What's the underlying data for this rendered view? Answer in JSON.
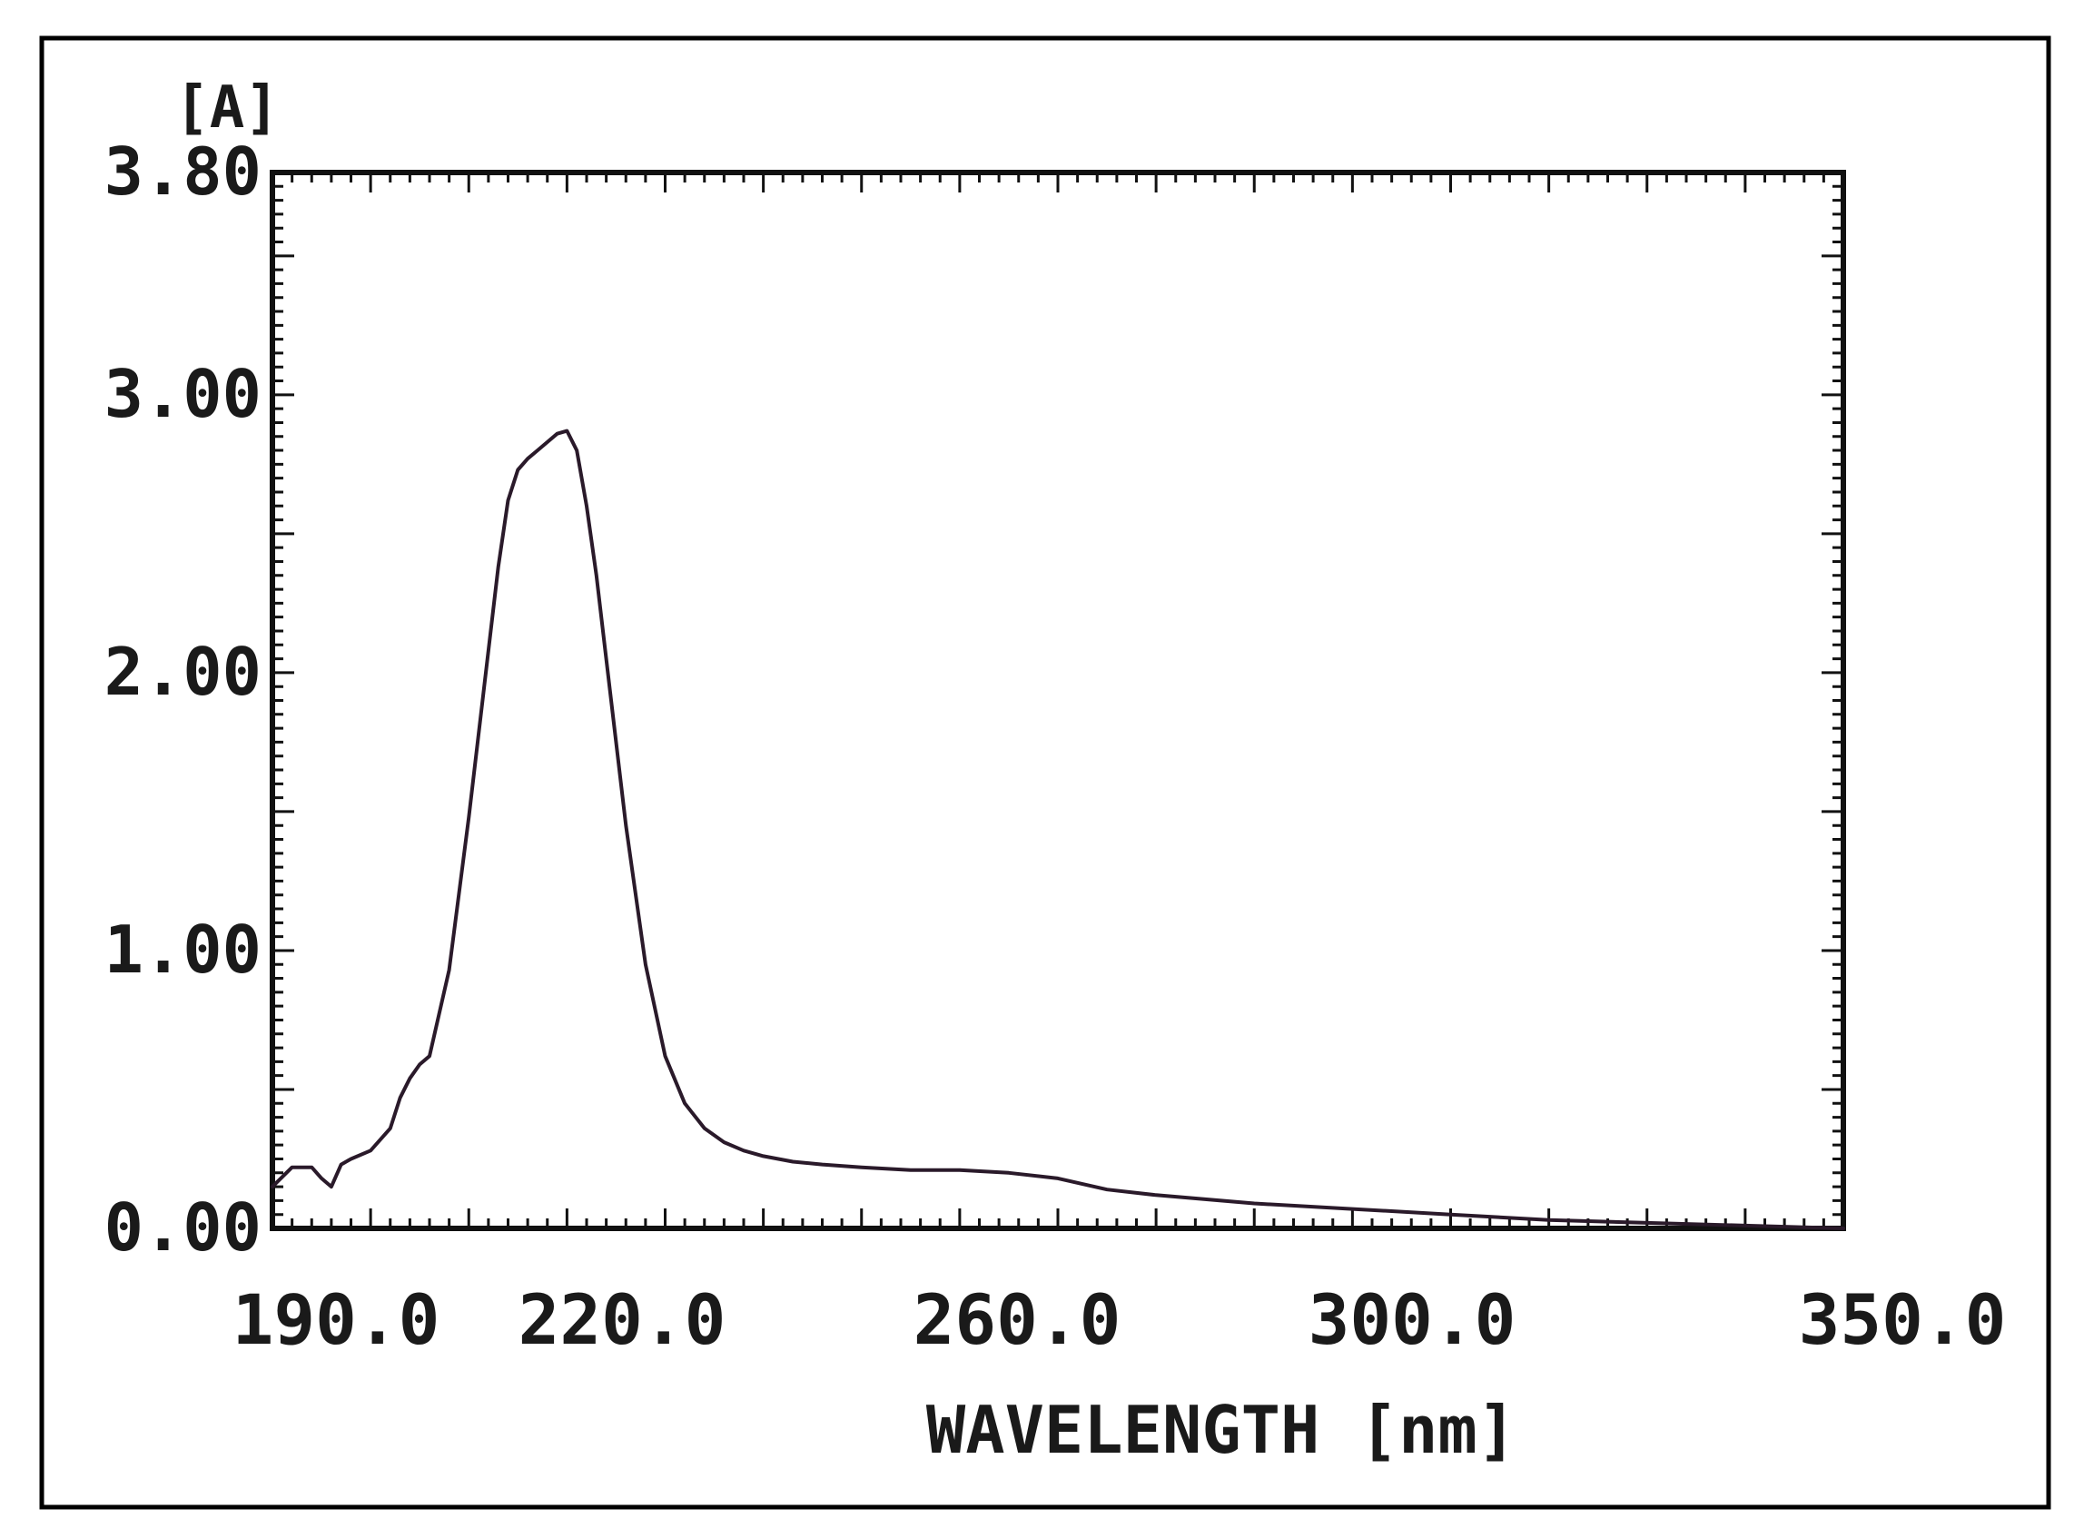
{
  "chart_data": {
    "type": "line",
    "title": "",
    "xlabel": "WAVELENGTH [nm]",
    "ylabel": "[A]",
    "xlim": [
      190.0,
      350.0
    ],
    "ylim": [
      0.0,
      3.8
    ],
    "x_ticks": [
      190.0,
      220.0,
      260.0,
      300.0,
      350.0
    ],
    "x_tick_labels": [
      "190.0",
      "220.0",
      "260.0",
      "300.0",
      "350.0"
    ],
    "y_ticks": [
      0.0,
      1.0,
      2.0,
      3.0,
      3.8
    ],
    "y_tick_labels": [
      "0.00",
      "1.00",
      "2.00",
      "3.00",
      "3.80"
    ],
    "grid": false,
    "series": [
      {
        "x": [
          190,
          192,
          194,
          195,
          196,
          197,
          198,
          200,
          202,
          203,
          204,
          205,
          206,
          208,
          210,
          212,
          213,
          214,
          215,
          216,
          217,
          218,
          219,
          220,
          221,
          222,
          223,
          224,
          226,
          228,
          230,
          232,
          234,
          236,
          238,
          240,
          243,
          246,
          250,
          255,
          260,
          265,
          270,
          275,
          280,
          290,
          300,
          310,
          320,
          330,
          340,
          350
        ],
        "y": [
          0.15,
          0.22,
          0.22,
          0.18,
          0.15,
          0.23,
          0.25,
          0.28,
          0.36,
          0.47,
          0.54,
          0.59,
          0.62,
          0.93,
          1.48,
          2.08,
          2.38,
          2.62,
          2.73,
          2.77,
          2.8,
          2.83,
          2.86,
          2.87,
          2.8,
          2.6,
          2.35,
          2.05,
          1.45,
          0.95,
          0.62,
          0.45,
          0.36,
          0.31,
          0.28,
          0.26,
          0.24,
          0.23,
          0.22,
          0.21,
          0.21,
          0.2,
          0.18,
          0.14,
          0.12,
          0.09,
          0.07,
          0.05,
          0.03,
          0.02,
          0.01,
          0.0
        ]
      }
    ],
    "colors": {
      "line": "#2a1a2a",
      "frame": "#111111",
      "text": "#1a1a1a"
    }
  }
}
